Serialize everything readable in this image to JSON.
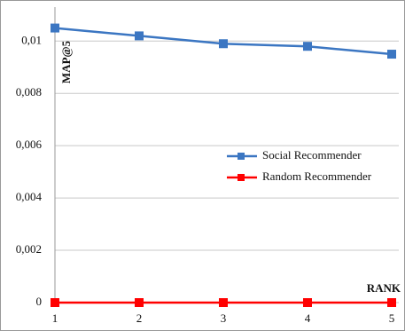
{
  "chart_data": {
    "type": "line",
    "y_label": "MAP@5",
    "x_label": "RANK",
    "categories": [
      "1",
      "2",
      "3",
      "4",
      "5"
    ],
    "series": [
      {
        "name": "Social Recommender",
        "color": "#3b76c2",
        "values": [
          0.0105,
          0.0102,
          0.0099,
          0.0098,
          0.0095
        ]
      },
      {
        "name": "Random Recommender",
        "color": "#ff0000",
        "values": [
          0,
          0,
          0,
          0,
          0
        ]
      }
    ],
    "ylim": [
      0,
      0.0113
    ],
    "yticks": [
      0,
      {
        "value": 0.002,
        "label": "0,002"
      },
      {
        "value": 0.004,
        "label": "0,004"
      },
      {
        "value": 0.006,
        "label": "0,006"
      },
      {
        "value": 0.008,
        "label": "0,008"
      },
      {
        "value": 0.01,
        "label": "0,01"
      }
    ],
    "grid": true
  }
}
